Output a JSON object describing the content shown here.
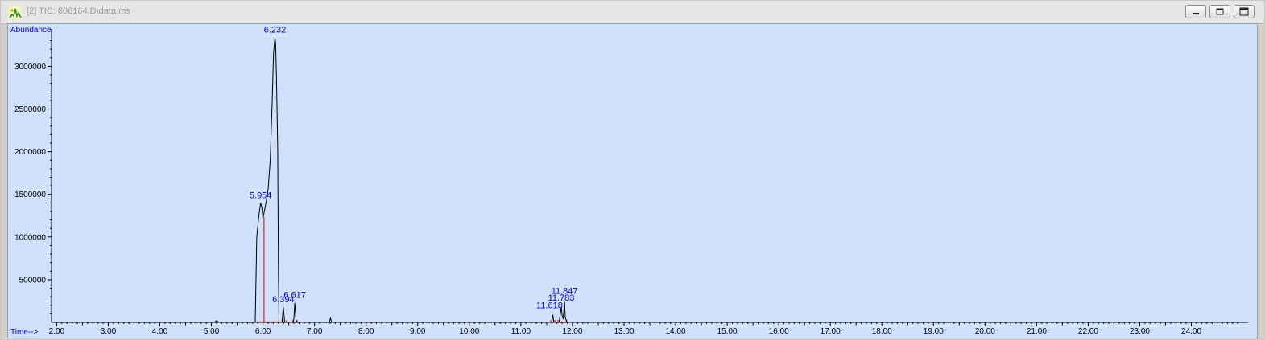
{
  "window": {
    "title": "[2] TIC: 806164.D\\data.ms"
  },
  "colors": {
    "plot_bg": "#d0e1fb",
    "trace": "#000000",
    "baseline": "#e02020",
    "label": "#0000cc"
  },
  "chart_data": {
    "type": "line",
    "ylabel": "Abundance",
    "xlabel": "Time-->",
    "xlim": [
      1.9,
      25.1
    ],
    "ylim": [
      0,
      3400000
    ],
    "x_ticks": [
      "2.00",
      "3.00",
      "4.00",
      "5.00",
      "6.00",
      "7.00",
      "8.00",
      "9.00",
      "10.00",
      "11.00",
      "12.00",
      "13.00",
      "14.00",
      "15.00",
      "16.00",
      "17.00",
      "18.00",
      "19.00",
      "20.00",
      "21.00",
      "22.00",
      "23.00",
      "24.00"
    ],
    "y_ticks": [
      "500000",
      "1000000",
      "1500000",
      "2000000",
      "2500000",
      "3000000"
    ],
    "series": [
      {
        "x": [
          1.9,
          5.05,
          5.1,
          5.15,
          5.85,
          5.88,
          5.92,
          5.954,
          5.98,
          6.0,
          6.03,
          6.07,
          6.1,
          6.14,
          6.18,
          6.205,
          6.232,
          6.245,
          6.26,
          6.285,
          6.3,
          6.31,
          6.33,
          6.37,
          6.394,
          6.42,
          6.46,
          6.58,
          6.6,
          6.617,
          6.64,
          6.66,
          7.0,
          7.28,
          7.31,
          7.33,
          7.36,
          7.8,
          11.55,
          11.6,
          11.618,
          11.64,
          11.68,
          11.74,
          11.76,
          11.783,
          11.8,
          11.82,
          11.847,
          11.86,
          11.89,
          11.95,
          25.1
        ],
        "y": [
          0,
          0,
          20000,
          0,
          0,
          1000000,
          1250000,
          1400000,
          1340000,
          1220000,
          1310000,
          1440000,
          1560000,
          1900000,
          2600000,
          3150000,
          3340000,
          3270000,
          2900000,
          2050000,
          600000,
          0,
          0,
          0,
          180000,
          10000,
          0,
          0,
          40000,
          230000,
          30000,
          0,
          0,
          0,
          50000,
          0,
          0,
          0,
          0,
          0,
          90000,
          0,
          0,
          0,
          70000,
          180000,
          80000,
          40000,
          240000,
          60000,
          0,
          0,
          0
        ]
      }
    ],
    "peak_labels": [
      {
        "rt": "5.954",
        "x": 5.954,
        "y": 1400000
      },
      {
        "rt": "6.232",
        "x": 6.232,
        "y": 3340000
      },
      {
        "rt": "6.394",
        "x": 6.394,
        "y": 180000
      },
      {
        "rt": "6.617",
        "x": 6.617,
        "y": 230000
      },
      {
        "rt": "11.618",
        "x": 11.618,
        "y": 90000
      },
      {
        "rt": "11.783",
        "x": 11.783,
        "y": 180000
      },
      {
        "rt": "11.847",
        "x": 11.847,
        "y": 240000
      }
    ],
    "integration_markers": [
      {
        "x": 6.02,
        "y_top": 1230000
      },
      {
        "x": 6.31,
        "y_top": 0
      },
      {
        "x": 6.37,
        "y_top": 0
      },
      {
        "x": 6.46,
        "y_top": 0
      },
      {
        "x": 6.58,
        "y_top": 0
      },
      {
        "x": 6.66,
        "y_top": 0
      },
      {
        "x": 11.58,
        "y_top": 0
      },
      {
        "x": 11.66,
        "y_top": 0
      },
      {
        "x": 11.72,
        "y_top": 0
      },
      {
        "x": 11.89,
        "y_top": 0
      }
    ]
  }
}
